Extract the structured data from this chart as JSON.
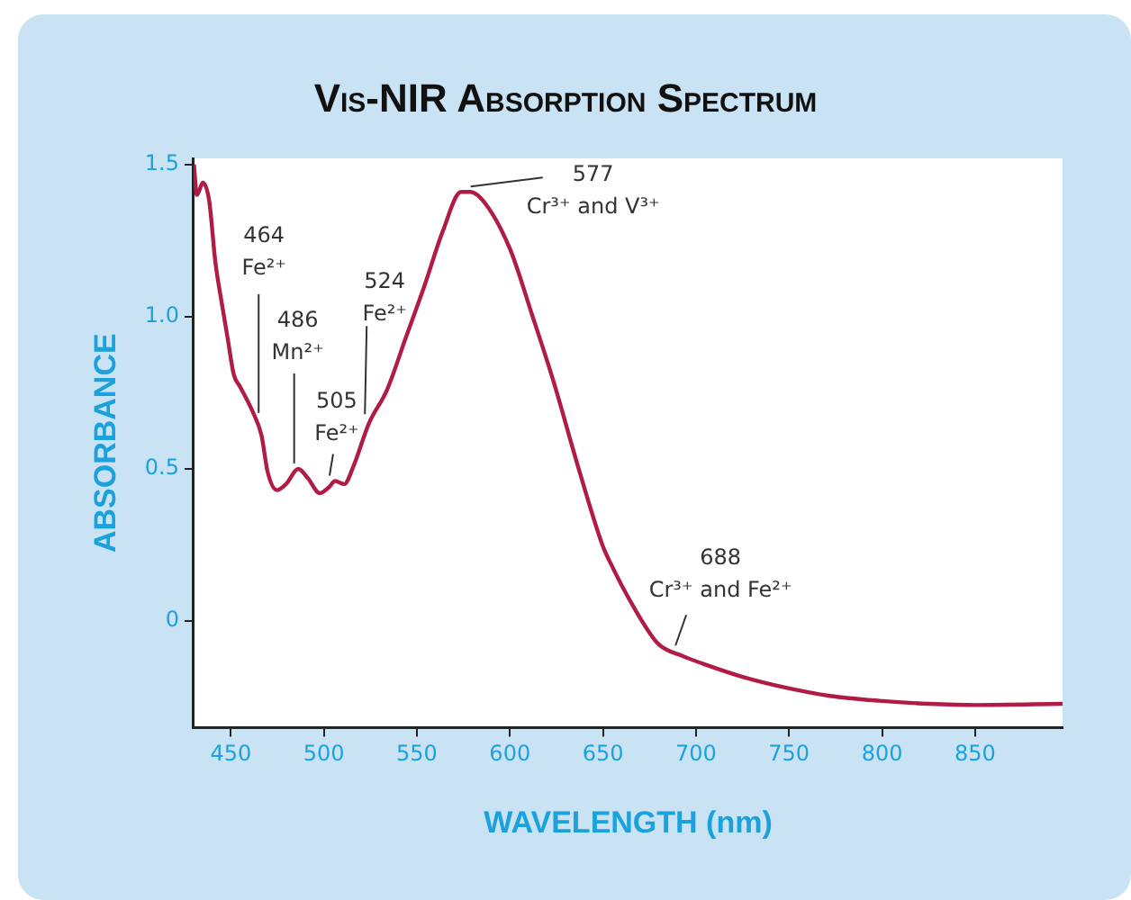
{
  "chart_data": {
    "type": "line",
    "title": "Vis-NIR Absorption Spectrum",
    "xlabel": "WAVELENGTH (nm)",
    "ylabel": "ABSORBANCE",
    "xlim": [
      430,
      897
    ],
    "ylim": [
      -0.35,
      1.52
    ],
    "xticks": [
      450,
      500,
      550,
      600,
      650,
      700,
      750,
      800,
      850
    ],
    "yticks": [
      0,
      0.5,
      {
        "value": 1,
        "label": "1.0"
      },
      1.5
    ],
    "grid": false,
    "legend": false,
    "marker": "none",
    "line_style": "solid",
    "series": [
      {
        "color": "#b01c45",
        "x": [
          430.2,
          431.8,
          435,
          438.4,
          441.7,
          445,
          448.3,
          451.6,
          455,
          461.6,
          466.5,
          469.8,
          474.8,
          479.7,
          486.3,
          491.3,
          497.9,
          502.8,
          506,
          511,
          516,
          524.3,
          534,
          544,
          554,
          563.9,
          573.8,
          578.7,
          587,
          600.2,
          611.7,
          623.3,
          636.5,
          649.7,
          653.3,
          666.5,
          679.7,
          692.9,
          706,
          725.9,
          749,
          772,
          798.5,
          825,
          851,
          897
        ],
        "values": [
          1.5,
          1.4,
          1.44,
          1.38,
          1.18,
          1.05,
          0.93,
          0.81,
          0.77,
          0.69,
          0.61,
          0.49,
          0.43,
          0.45,
          0.5,
          0.47,
          0.42,
          0.44,
          0.46,
          0.45,
          0.51,
          0.65,
          0.76,
          0.93,
          1.1,
          1.28,
          1.41,
          1.41,
          1.37,
          1.22,
          1.01,
          0.79,
          0.51,
          0.25,
          0.2,
          0.046,
          -0.075,
          -0.115,
          -0.145,
          -0.185,
          -0.22,
          -0.246,
          -0.262,
          -0.272,
          -0.276,
          -0.272
        ]
      }
    ],
    "annotations": [
      {
        "text": "464\nFe²⁺",
        "x": 464,
        "y": 0.66
      },
      {
        "text": "486\nMn²⁺",
        "x": 486,
        "y": 0.5
      },
      {
        "text": "505\nFe²⁺",
        "x": 505,
        "y": 0.46
      },
      {
        "text": "524\nFe²⁺",
        "x": 524,
        "y": 0.65
      },
      {
        "text": "577\nCr³⁺ and V³⁺",
        "x": 577,
        "y": 1.41
      },
      {
        "text": "688\nCr³⁺ and Fe²⁺",
        "x": 688,
        "y": -0.11
      }
    ]
  }
}
